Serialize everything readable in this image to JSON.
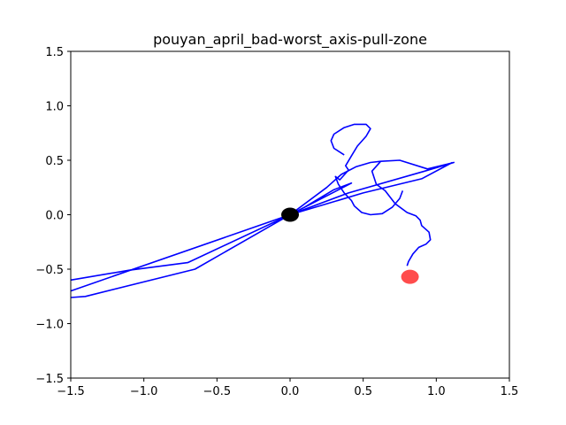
{
  "chart_data": {
    "type": "line",
    "title": "pouyan_april_bad-worst_axis-pull-zone",
    "xlabel": "",
    "ylabel": "",
    "xlim": [
      -1.5,
      1.5
    ],
    "ylim": [
      -1.5,
      1.5
    ],
    "xticks": [
      -1.5,
      -1.0,
      -0.5,
      0.0,
      0.5,
      1.0,
      1.5
    ],
    "yticks": [
      -1.5,
      -1.0,
      -0.5,
      0.0,
      0.5,
      1.0,
      1.5
    ],
    "xtick_labels": [
      "−1.5",
      "−1.0",
      "−0.5",
      "0.0",
      "0.5",
      "1.0",
      "1.5"
    ],
    "ytick_labels": [
      "−1.5",
      "−1.0",
      "−0.5",
      "0.0",
      "0.5",
      "1.0",
      "1.5"
    ],
    "grid": false,
    "series": [
      {
        "color": "#0000ff",
        "x": [
          -1.5,
          -1.1,
          -0.7,
          0.0,
          0.42,
          0.3,
          0.1,
          0.0,
          -0.65,
          -1.4,
          -1.5
        ],
        "y": [
          -0.6,
          -0.51,
          -0.44,
          0.0,
          0.29,
          0.23,
          0.07,
          0.0,
          -0.5,
          -0.75,
          -0.76
        ]
      },
      {
        "color": "#0000ff",
        "x": [
          -1.5,
          -0.0,
          0.4,
          0.92,
          1.12,
          0.94,
          0.75,
          0.62,
          0.55,
          0.45,
          0.35,
          0.25,
          0.0
        ],
        "y": [
          -0.7,
          0.0,
          0.2,
          0.4,
          0.48,
          0.42,
          0.5,
          0.49,
          0.48,
          0.44,
          0.37,
          0.25,
          0.0
        ]
      },
      {
        "color": "#0000ff",
        "x": [
          0.0,
          0.5,
          0.9,
          1.11
        ],
        "y": [
          0.0,
          0.2,
          0.33,
          0.48
        ]
      },
      {
        "color": "#0000ff",
        "x": [
          0.37,
          0.3,
          0.28,
          0.3,
          0.37,
          0.44,
          0.52,
          0.55,
          0.52,
          0.46,
          0.42,
          0.38,
          0.4,
          0.34,
          0.31,
          0.33,
          0.37,
          0.42,
          0.44,
          0.49,
          0.55,
          0.63,
          0.7,
          0.75,
          0.77
        ],
        "y": [
          0.55,
          0.61,
          0.68,
          0.74,
          0.8,
          0.83,
          0.83,
          0.79,
          0.72,
          0.63,
          0.54,
          0.45,
          0.41,
          0.32,
          0.35,
          0.28,
          0.2,
          0.13,
          0.08,
          0.02,
          0.0,
          0.01,
          0.07,
          0.15,
          0.22
        ]
      },
      {
        "color": "#0000ff",
        "x": [
          0.62,
          0.56,
          0.59,
          0.65,
          0.72,
          0.8,
          0.86,
          0.89,
          0.9,
          0.95,
          0.96,
          0.93,
          0.88,
          0.84,
          0.81,
          0.8
        ],
        "y": [
          0.49,
          0.4,
          0.28,
          0.22,
          0.1,
          0.02,
          -0.01,
          -0.05,
          -0.1,
          -0.16,
          -0.23,
          -0.27,
          -0.3,
          -0.36,
          -0.43,
          -0.47
        ]
      }
    ],
    "markers": [
      {
        "x": 0.0,
        "y": 0.0,
        "color": "#000000",
        "alpha": 1.0
      },
      {
        "x": 0.82,
        "y": -0.57,
        "color": "#ff0000",
        "alpha": 0.7
      }
    ]
  }
}
